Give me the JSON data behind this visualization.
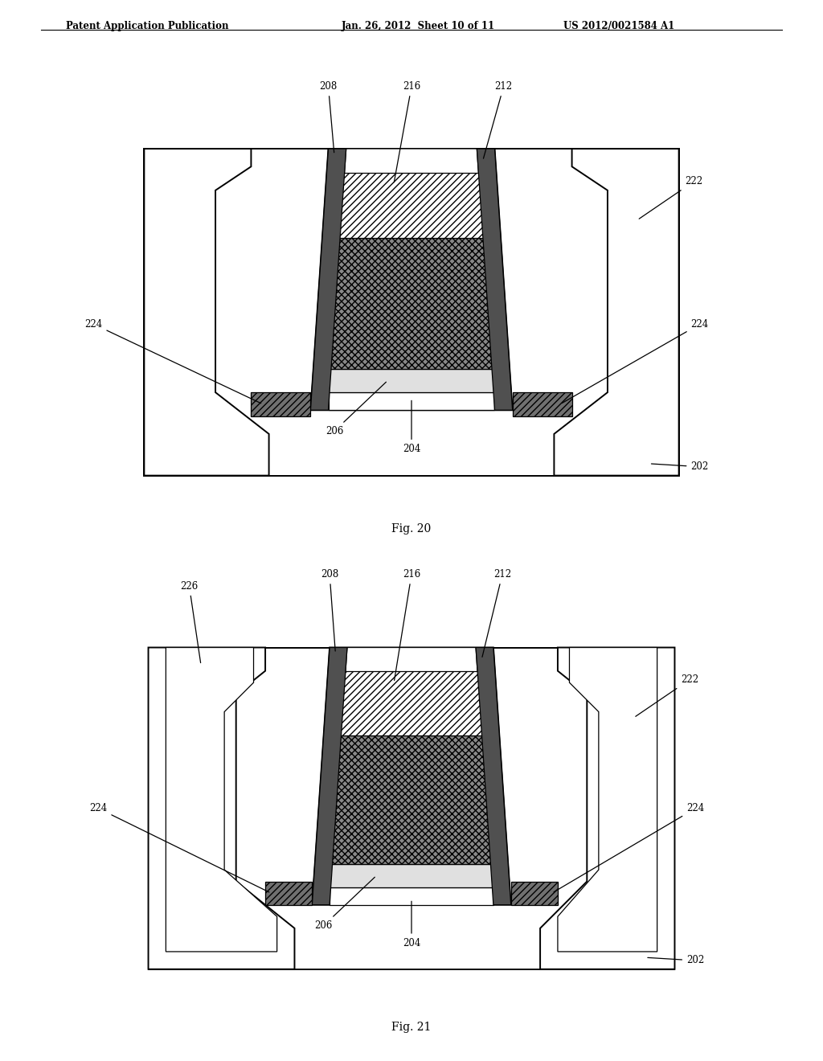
{
  "title_left": "Patent Application Publication",
  "title_center": "Jan. 26, 2012  Sheet 10 of 11",
  "title_right": "US 2012/0021584 A1",
  "fig20_caption": "Fig. 20",
  "fig21_caption": "Fig. 21",
  "bg_color": "#ffffff"
}
